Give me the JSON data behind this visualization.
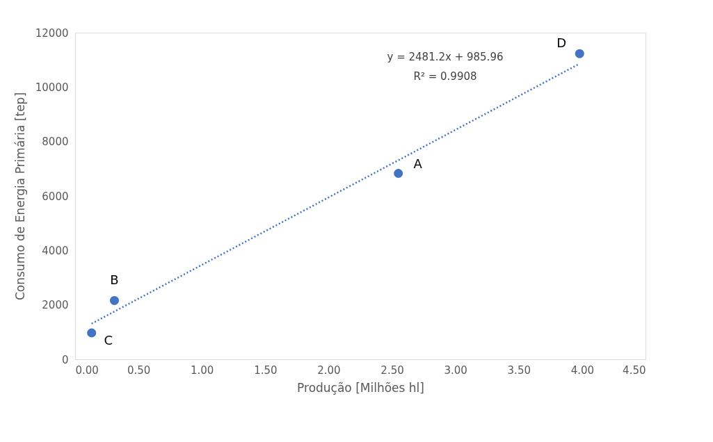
{
  "chart_data": {
    "type": "scatter",
    "xlabel": "Produção [Milhões hl]",
    "ylabel": "Consumo de Energia Primária [tep]",
    "xlim": [
      0,
      4.5
    ],
    "xticks": [
      {
        "value": 0,
        "label": "0.00"
      },
      {
        "value": 0.5,
        "label": "0.50"
      },
      {
        "value": 1,
        "label": "1.00"
      },
      {
        "value": 1.5,
        "label": "1.50"
      },
      {
        "value": 2,
        "label": "2.00"
      },
      {
        "value": 2.5,
        "label": "2.50"
      },
      {
        "value": 3,
        "label": "3.00"
      },
      {
        "value": 3.5,
        "label": "3.50"
      },
      {
        "value": 4,
        "label": "4.00"
      },
      {
        "value": 4.5,
        "label": "4.50"
      }
    ],
    "ylim": [
      0,
      12000
    ],
    "yticks": [
      0,
      2000,
      4000,
      6000,
      8000,
      10000,
      12000
    ],
    "grid": false,
    "marker": "circle",
    "series": [
      {
        "color": "#4472c4",
        "x": [
          2.55,
          0.31,
          0.13,
          3.98
        ],
        "values": [
          6830,
          2160,
          970,
          11230
        ]
      },
      {
        "type": "line",
        "color": "#4472c4",
        "line_style": "dotted",
        "marker": "none",
        "x": [
          0.13,
          3.98
        ],
        "values": [
          1310,
          10860
        ]
      }
    ],
    "annotations": [
      {
        "text": "A",
        "x": 2.55,
        "y": 6830
      },
      {
        "text": "B",
        "x": 0.31,
        "y": 2160
      },
      {
        "text": "C",
        "x": 0.13,
        "y": 970
      },
      {
        "text": "D",
        "x": 3.98,
        "y": 11230
      },
      "y = 2481.2x + 985.96",
      "R² = 0.9908"
    ]
  }
}
